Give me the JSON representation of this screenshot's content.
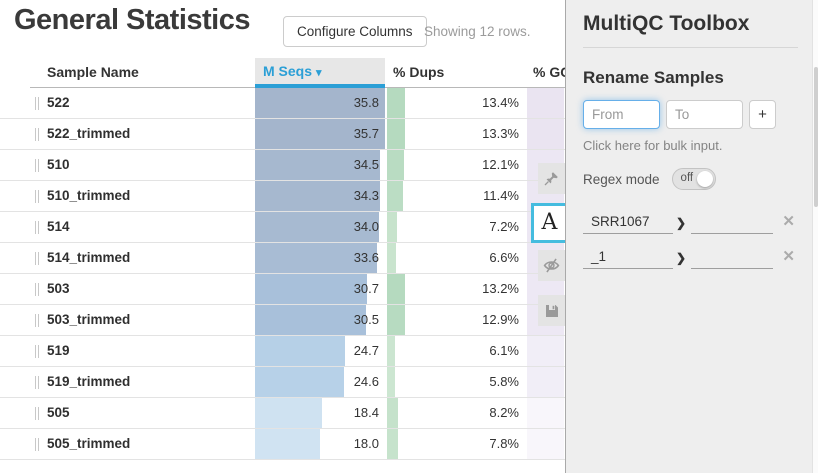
{
  "page": {
    "title": "General Statistics",
    "configure_columns_label": "Configure Columns",
    "showing_text": "Showing 12 rows."
  },
  "icons": {
    "sort_caret": "▾",
    "chevron_right": "❯",
    "close_x": "✕"
  },
  "colors": {
    "accent_blue": "#2b9fd6",
    "active_tab_border": "#45bcdf",
    "focus_ring": "#66afe9",
    "dups_bar_green": "#b5dabf",
    "gc_bar_purple": "#ece7f3",
    "toolbox_bg": "#eeeeee"
  },
  "table": {
    "columns": [
      {
        "label": "Sample Name",
        "sorted": false
      },
      {
        "label": "M Seqs",
        "sorted": true
      },
      {
        "label": "% Dups",
        "sorted": false
      },
      {
        "label": "% GC",
        "sorted": false
      }
    ],
    "sort_indicator": "▾",
    "max_mseqs": 35.8,
    "rows": [
      {
        "name": "522",
        "mseqs": "35.8",
        "mseqs_bar_pct": 100,
        "mseqs_bar_color": "#a4b5cc",
        "dups": "13.4%",
        "dups_bar_pct": 13.4,
        "dups_bar_color": "#b5dabf",
        "gc_bar_color": "#eae4f1"
      },
      {
        "name": "522_trimmed",
        "mseqs": "35.7",
        "mseqs_bar_pct": 99.7,
        "mseqs_bar_color": "#a4b5cc",
        "dups": "13.3%",
        "dups_bar_pct": 13.3,
        "dups_bar_color": "#b5dabf",
        "gc_bar_color": "#eae4f1"
      },
      {
        "name": "510",
        "mseqs": "34.5",
        "mseqs_bar_pct": 96.4,
        "mseqs_bar_color": "#a6b8cf",
        "dups": "12.1%",
        "dups_bar_pct": 12.1,
        "dups_bar_color": "#b9dcc2",
        "gc_bar_color": "#ece7f3"
      },
      {
        "name": "510_trimmed",
        "mseqs": "34.3",
        "mseqs_bar_pct": 95.8,
        "mseqs_bar_color": "#a6b8cf",
        "dups": "11.4%",
        "dups_bar_pct": 11.4,
        "dups_bar_color": "#bbddc4",
        "gc_bar_color": "#ece7f3"
      },
      {
        "name": "514",
        "mseqs": "34.0",
        "mseqs_bar_pct": 95.0,
        "mseqs_bar_color": "#a7bad1",
        "dups": "7.2%",
        "dups_bar_pct": 7.2,
        "dups_bar_color": "#c7e3cc",
        "gc_bar_color": "#ece7f3"
      },
      {
        "name": "514_trimmed",
        "mseqs": "33.6",
        "mseqs_bar_pct": 93.9,
        "mseqs_bar_color": "#a8bcd4",
        "dups": "6.6%",
        "dups_bar_pct": 6.6,
        "dups_bar_color": "#c9e4ce",
        "gc_bar_color": "#ece7f3"
      },
      {
        "name": "503",
        "mseqs": "30.7",
        "mseqs_bar_pct": 85.8,
        "mseqs_bar_color": "#a8c0da",
        "dups": "13.2%",
        "dups_bar_pct": 13.2,
        "dups_bar_color": "#b5dabf",
        "gc_bar_color": "#ede8f4"
      },
      {
        "name": "503_trimmed",
        "mseqs": "30.5",
        "mseqs_bar_pct": 85.2,
        "mseqs_bar_color": "#a8c0da",
        "dups": "12.9%",
        "dups_bar_pct": 12.9,
        "dups_bar_color": "#b7dbc1",
        "gc_bar_color": "#ede8f4"
      },
      {
        "name": "519",
        "mseqs": "24.7",
        "mseqs_bar_pct": 69.0,
        "mseqs_bar_color": "#b6d0e7",
        "dups": "6.1%",
        "dups_bar_pct": 6.1,
        "dups_bar_color": "#cbe5d0",
        "gc_bar_color": "#f1eef7"
      },
      {
        "name": "519_trimmed",
        "mseqs": "24.6",
        "mseqs_bar_pct": 68.7,
        "mseqs_bar_color": "#b7d1e8",
        "dups": "5.8%",
        "dups_bar_pct": 5.8,
        "dups_bar_color": "#cce6d1",
        "gc_bar_color": "#f1eef7"
      },
      {
        "name": "505",
        "mseqs": "18.4",
        "mseqs_bar_pct": 51.4,
        "mseqs_bar_color": "#cfe2f1",
        "dups": "8.2%",
        "dups_bar_pct": 8.2,
        "dups_bar_color": "#c5e2cb",
        "gc_bar_color": "#f8f6fb"
      },
      {
        "name": "505_trimmed",
        "mseqs": "18.0",
        "mseqs_bar_pct": 50.3,
        "mseqs_bar_color": "#d0e3f2",
        "dups": "7.8%",
        "dups_bar_pct": 7.8,
        "dups_bar_color": "#c6e3cc",
        "gc_bar_color": "#f8f6fb"
      }
    ]
  },
  "toolbox": {
    "title": "MultiQC Toolbox",
    "section_title": "Rename Samples",
    "from_placeholder": "From",
    "to_placeholder": "To",
    "add_button_label": "+",
    "bulk_input_text": "Click here for bulk input.",
    "regex_label": "Regex mode",
    "regex_state": "off",
    "renames": [
      {
        "from": "SRR1067",
        "to": ""
      },
      {
        "from": "_1",
        "to": ""
      }
    ],
    "tabs": [
      {
        "name": "highlight",
        "icon": "pushpin-icon",
        "active": false
      },
      {
        "name": "rename",
        "icon": "letter-a-icon",
        "glyph": "A",
        "active": true
      },
      {
        "name": "hide-samples",
        "icon": "eye-slash-icon",
        "active": false
      },
      {
        "name": "save-settings",
        "icon": "floppy-icon",
        "active": false
      }
    ]
  }
}
